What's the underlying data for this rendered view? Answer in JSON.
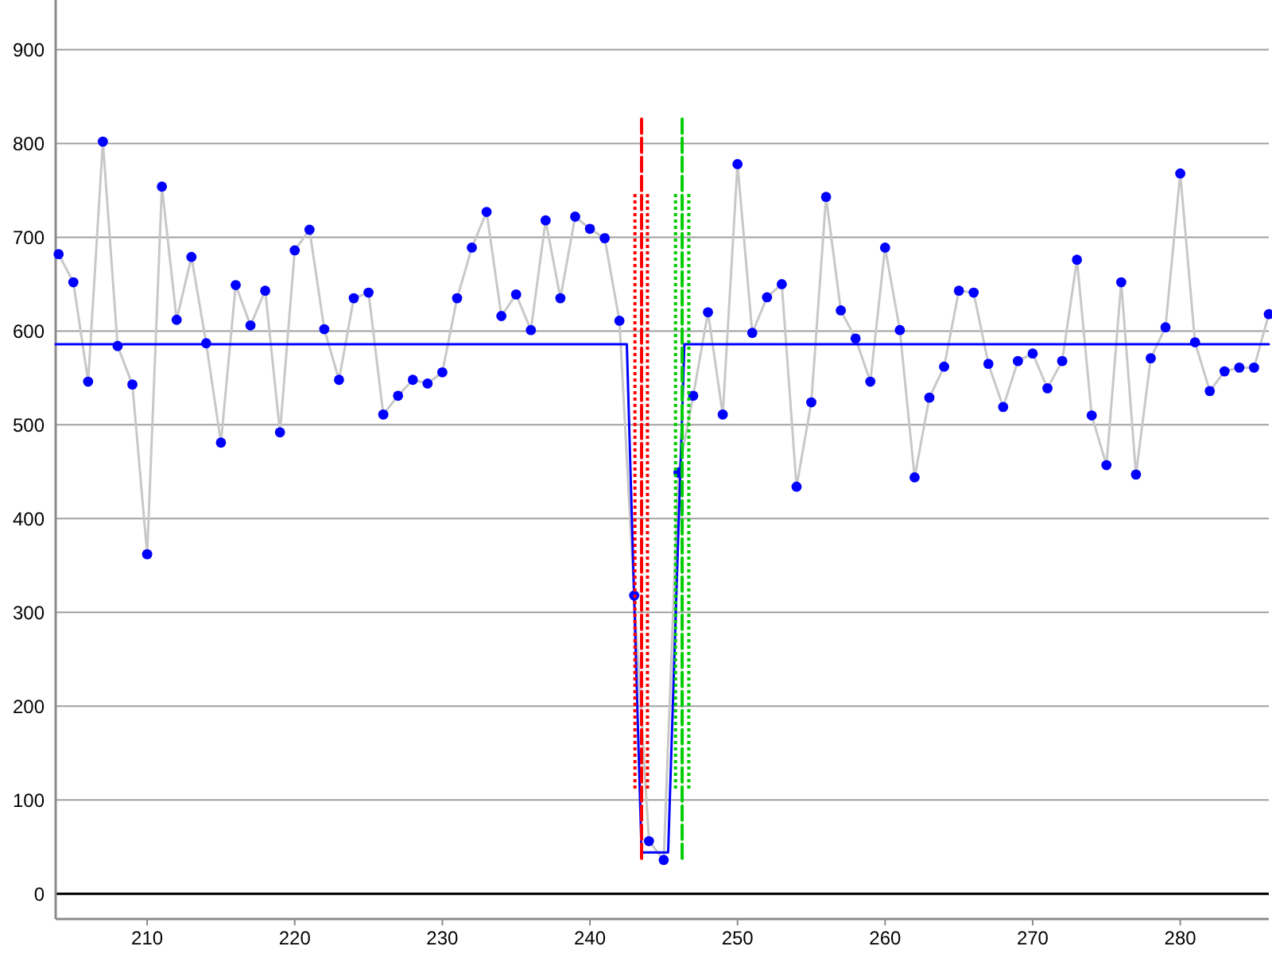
{
  "chart_data": {
    "type": "line",
    "xlim": [
      203.8,
      286
    ],
    "ylim": [
      -27,
      953
    ],
    "xticks": [
      210,
      220,
      230,
      240,
      250,
      260,
      270,
      280
    ],
    "yticks": [
      0,
      100,
      200,
      300,
      400,
      500,
      600,
      700,
      800,
      900
    ],
    "grid": "y",
    "ref_lines": [
      {
        "axis": "y",
        "value": 0,
        "color": "#000000"
      }
    ],
    "x": [
      204,
      205,
      206,
      207,
      208,
      209,
      210,
      211,
      212,
      213,
      214,
      215,
      216,
      217,
      218,
      219,
      220,
      221,
      222,
      223,
      224,
      225,
      226,
      227,
      228,
      229,
      230,
      231,
      232,
      233,
      234,
      235,
      236,
      237,
      238,
      239,
      240,
      241,
      242,
      243,
      244,
      245,
      246,
      247,
      248,
      249,
      250,
      251,
      252,
      253,
      254,
      255,
      256,
      257,
      258,
      259,
      260,
      261,
      262,
      263,
      264,
      265,
      266,
      267,
      268,
      269,
      270,
      271,
      272,
      273,
      274,
      275,
      276,
      277,
      278,
      279,
      280,
      281,
      282,
      283,
      284,
      285,
      286
    ],
    "series": [
      {
        "color": "#c8c8c8",
        "line_style": "solid",
        "marker": "none",
        "values": [
          682,
          652,
          546,
          802,
          584,
          543,
          362,
          754,
          612,
          679,
          587,
          481,
          649,
          606,
          643,
          492,
          686,
          708,
          602,
          548,
          635,
          641,
          511,
          531,
          548,
          544,
          556,
          635,
          689,
          727,
          616,
          639,
          601,
          718,
          635,
          722,
          709,
          699,
          611,
          318,
          56,
          36,
          449,
          531,
          620,
          511,
          778,
          598,
          636,
          650,
          434,
          524,
          743,
          622,
          592,
          546,
          689,
          601,
          444,
          529,
          562,
          643,
          641,
          565,
          519,
          568,
          576,
          539,
          568,
          676,
          510,
          457,
          652,
          447,
          571,
          604,
          768,
          588,
          536,
          557,
          561,
          561,
          618
        ]
      },
      {
        "type": "scatter",
        "color": "#0000ff",
        "marker": "circle",
        "values": [
          682,
          652,
          546,
          802,
          584,
          543,
          362,
          754,
          612,
          679,
          587,
          481,
          649,
          606,
          643,
          492,
          686,
          708,
          602,
          548,
          635,
          641,
          511,
          531,
          548,
          544,
          556,
          635,
          689,
          727,
          616,
          639,
          601,
          718,
          635,
          722,
          709,
          699,
          611,
          318,
          56,
          36,
          449,
          531,
          620,
          511,
          778,
          598,
          636,
          650,
          434,
          524,
          743,
          622,
          592,
          546,
          689,
          601,
          444,
          529,
          562,
          643,
          641,
          565,
          519,
          568,
          576,
          539,
          568,
          676,
          510,
          457,
          652,
          447,
          571,
          604,
          768,
          588,
          536,
          557,
          561,
          561,
          618
        ]
      },
      {
        "color": "#0000ff",
        "line_style": "solid",
        "x": [
          203.8,
          242.5,
          243.5,
          245.3,
          246.4,
          286
        ],
        "values": [
          586,
          586,
          44,
          44,
          586,
          586
        ]
      },
      {
        "color": "#ff0000",
        "line_style": "dashed",
        "x": [
          243.5,
          243.5
        ],
        "values": [
          826,
          33
        ]
      },
      {
        "color": "#ff0000",
        "line_style": "dotted",
        "x": [
          243.05,
          243.05
        ],
        "values": [
          112,
          748
        ]
      },
      {
        "color": "#ff0000",
        "line_style": "dotted",
        "x": [
          243.9,
          243.9
        ],
        "values": [
          112,
          748
        ]
      },
      {
        "color": "#00cc00",
        "line_style": "dashed",
        "x": [
          246.25,
          246.25
        ],
        "values": [
          826,
          33
        ]
      },
      {
        "color": "#00cc00",
        "line_style": "dotted",
        "x": [
          245.8,
          245.8
        ],
        "values": [
          112,
          748
        ]
      },
      {
        "color": "#00cc00",
        "line_style": "dotted",
        "x": [
          246.7,
          246.7
        ],
        "values": [
          112,
          748
        ]
      }
    ]
  }
}
